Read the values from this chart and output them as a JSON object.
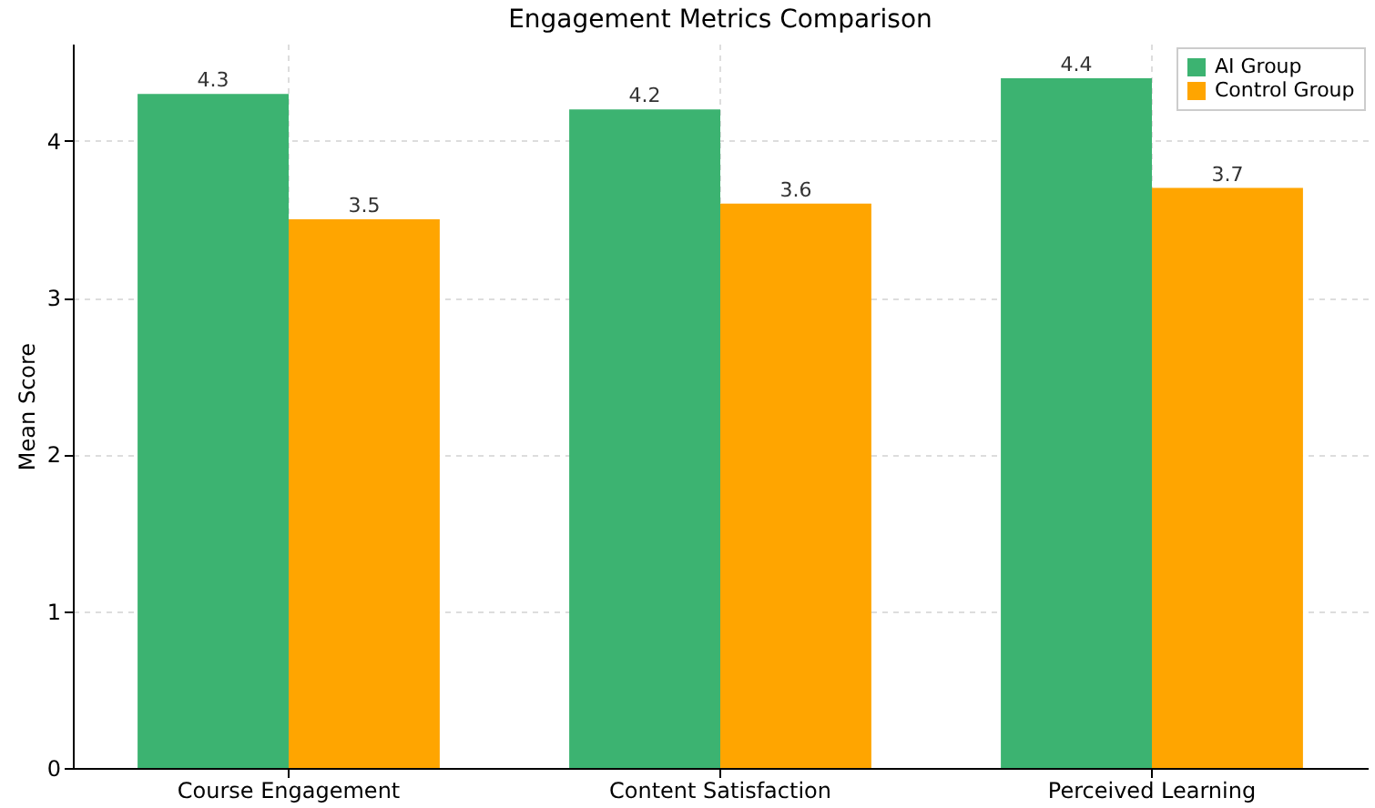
{
  "chart_data": {
    "type": "bar",
    "title": "Engagement Metrics Comparison",
    "ylabel": "Mean Score",
    "categories": [
      "Course Engagement",
      "Content Satisfaction",
      "Perceived Learning"
    ],
    "series": [
      {
        "name": "AI Group",
        "color": "#3cb371",
        "values": [
          4.3,
          4.2,
          4.4
        ]
      },
      {
        "name": "Control Group",
        "color": "#ffa500",
        "values": [
          3.5,
          3.6,
          3.7
        ]
      }
    ],
    "ylim": [
      0,
      4.62
    ],
    "yticks": [
      0,
      1,
      2,
      3,
      4
    ],
    "grid": true,
    "legend": "top right",
    "data_labels": true
  }
}
